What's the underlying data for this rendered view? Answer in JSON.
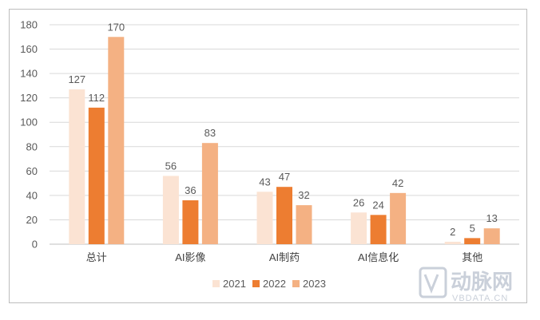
{
  "chart_data": {
    "type": "bar",
    "categories": [
      "总计",
      "AI影像",
      "AI制药",
      "AI信息化",
      "其他"
    ],
    "series": [
      {
        "name": "2021",
        "values": [
          127,
          56,
          43,
          26,
          2
        ],
        "color": "#fbe3d3"
      },
      {
        "name": "2022",
        "values": [
          112,
          36,
          47,
          24,
          5
        ],
        "color": "#ed7d31"
      },
      {
        "name": "2023",
        "values": [
          170,
          83,
          32,
          42,
          13
        ],
        "color": "#f4b183"
      }
    ],
    "ylim": [
      0,
      180
    ],
    "yticks": [
      0,
      20,
      40,
      60,
      80,
      100,
      120,
      140,
      160,
      180
    ],
    "grid": true,
    "legend": "bottom-center",
    "title": "",
    "xlabel": "",
    "ylabel": ""
  },
  "watermark": {
    "logo_text": "动脉网",
    "url_text": "VBDATA.CN",
    "icon": "vb-logo-icon",
    "color": "#c5ccd6"
  }
}
